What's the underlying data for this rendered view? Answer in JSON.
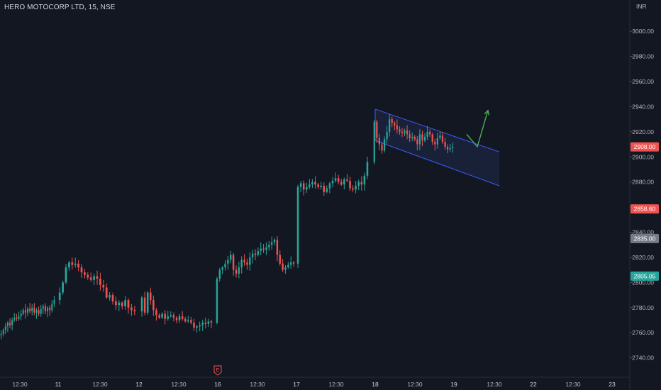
{
  "symbol": {
    "title": "HERO MOTOCORP LTD, 15, NSE",
    "currency": "INR"
  },
  "colors": {
    "background": "#131722",
    "up": "#26a69a",
    "down": "#ef5350",
    "channel": "#3d5afe",
    "channel_fill": "#1e2a4a",
    "arrow": "#4caf50",
    "text": "#b2b5be",
    "tag_gray": "#787b86"
  },
  "chart_data": {
    "type": "candlestick",
    "title": "HERO MOTOCORP LTD, 15, NSE",
    "ylabel": "INR",
    "ylim": [
      2733,
      3008
    ],
    "y_ticks": [
      "3000.00",
      "2980.00",
      "2960.00",
      "2940.00",
      "2920.00",
      "2900.00",
      "2880.00",
      "2860.00",
      "2840.00",
      "2820.00",
      "2800.00",
      "2780.00",
      "2760.00",
      "2740.00"
    ],
    "x_ticks": [
      "12:30",
      "11",
      "12:30",
      "12",
      "12:30",
      "16",
      "12:30",
      "17",
      "12:30",
      "18",
      "12:30",
      "19",
      "12:30",
      "22",
      "12:30",
      "23"
    ],
    "sessions": [
      {
        "day": "10",
        "closes": [
          2759,
          2762,
          2765,
          2768,
          2766,
          2770,
          2772,
          2771,
          2773,
          2775,
          2778,
          2776,
          2779,
          2777,
          2780,
          2776,
          2778,
          2775,
          2779,
          2781,
          2777,
          2780,
          2778,
          2783,
          2786
        ]
      },
      {
        "day": "11",
        "closes": [
          2792,
          2800,
          2812,
          2816,
          2814,
          2815,
          2812,
          2808,
          2806,
          2804,
          2802,
          2805,
          2803,
          2798,
          2796,
          2788,
          2790,
          2785,
          2782,
          2784,
          2781,
          2786,
          2780,
          2778,
          2777
        ]
      },
      {
        "day": "12",
        "closes": [
          2788,
          2776,
          2792,
          2786,
          2778,
          2774,
          2772,
          2775,
          2771,
          2773,
          2774,
          2772,
          2770,
          2773,
          2771,
          2769,
          2770,
          2768,
          2764,
          2765,
          2766,
          2768,
          2767,
          2769,
          2768
        ]
      },
      {
        "day": "16",
        "closes": [
          2803,
          2810,
          2812,
          2815,
          2818,
          2822,
          2810,
          2807,
          2812,
          2818,
          2816,
          2814,
          2820,
          2823,
          2822,
          2825,
          2827,
          2826,
          2828,
          2830,
          2832,
          2834,
          2822,
          2815,
          2810,
          2812,
          2814,
          2816,
          2815
        ]
      },
      {
        "day": "17",
        "closes": [
          2876,
          2879,
          2874,
          2876,
          2878,
          2880,
          2878,
          2876,
          2877,
          2872,
          2875,
          2879,
          2881,
          2883,
          2880,
          2878,
          2882,
          2881,
          2875,
          2874,
          2877,
          2880,
          2878,
          2885,
          2896
        ]
      },
      {
        "day": "18",
        "closes": [
          2928,
          2915,
          2910,
          2905,
          2914,
          2920,
          2930,
          2927,
          2925,
          2922,
          2920,
          2919,
          2921,
          2918,
          2915,
          2916,
          2914,
          2910,
          2918,
          2913,
          2916,
          2920,
          2918,
          2912,
          2910,
          2915,
          2917,
          2912,
          2908,
          2906,
          2907,
          2908
        ]
      }
    ],
    "price_tags": [
      {
        "value": 2908.0,
        "label": "2908.00",
        "kind": "down"
      },
      {
        "value": 2858.6,
        "label": "2858.60",
        "kind": "down"
      },
      {
        "value": 2835.0,
        "label": "2835.00",
        "kind": "gray"
      },
      {
        "value": 2805.05,
        "label": "2805.05",
        "kind": "up"
      }
    ],
    "events": [
      {
        "label": "E",
        "day": "16"
      }
    ],
    "channel": {
      "upper": {
        "start": [
          0.0,
          2938
        ],
        "end": [
          1.0,
          2904
        ]
      },
      "lower": {
        "start": [
          0.0,
          2913
        ],
        "end": [
          1.0,
          2877
        ]
      }
    },
    "projection_arrow": [
      [
        0.0,
        2918
      ],
      [
        0.5,
        2908
      ],
      [
        1.0,
        2937
      ]
    ]
  }
}
